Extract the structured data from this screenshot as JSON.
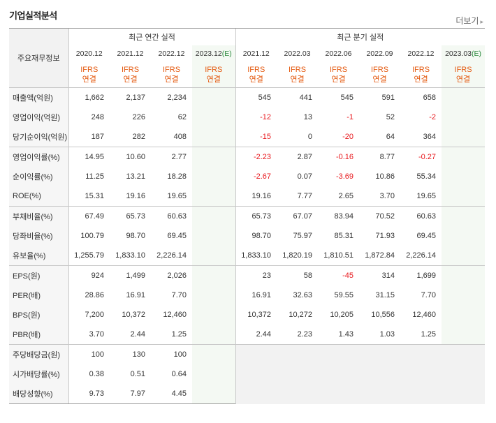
{
  "title": "기업실적분석",
  "more_label": "더보기",
  "header": {
    "category_label": "주요재무정보",
    "annual_label": "최근 연간 실적",
    "quarterly_label": "최근 분기 실적",
    "annual_periods": [
      "2020.12",
      "2021.12",
      "2022.12",
      "2023.12"
    ],
    "quarterly_periods": [
      "2021.12",
      "2022.03",
      "2022.06",
      "2022.09",
      "2022.12",
      "2023.03"
    ],
    "estimate_suffix": "(E)",
    "ifrs_line1": "IFRS",
    "ifrs_line2": "연결"
  },
  "rows": [
    {
      "label": "매출액(억원)",
      "annual": [
        "1,662",
        "2,137",
        "2,234",
        ""
      ],
      "quarterly": [
        "545",
        "441",
        "545",
        "591",
        "658",
        ""
      ]
    },
    {
      "label": "영업이익(억원)",
      "annual": [
        "248",
        "226",
        "62",
        ""
      ],
      "quarterly": [
        "-12",
        "13",
        "-1",
        "52",
        "-2",
        ""
      ]
    },
    {
      "label": "당기순이익(억원)",
      "annual": [
        "187",
        "282",
        "408",
        ""
      ],
      "quarterly": [
        "-15",
        "0",
        "-20",
        "64",
        "364",
        ""
      ]
    },
    {
      "label": "영업이익률(%)",
      "annual": [
        "14.95",
        "10.60",
        "2.77",
        ""
      ],
      "quarterly": [
        "-2.23",
        "2.87",
        "-0.16",
        "8.77",
        "-0.27",
        ""
      ]
    },
    {
      "label": "순이익률(%)",
      "annual": [
        "11.25",
        "13.21",
        "18.28",
        ""
      ],
      "quarterly": [
        "-2.67",
        "0.07",
        "-3.69",
        "10.86",
        "55.34",
        ""
      ]
    },
    {
      "label": "ROE(%)",
      "annual": [
        "15.31",
        "19.16",
        "19.65",
        ""
      ],
      "quarterly": [
        "19.16",
        "7.77",
        "2.65",
        "3.70",
        "19.65",
        ""
      ]
    },
    {
      "label": "부채비율(%)",
      "annual": [
        "67.49",
        "65.73",
        "60.63",
        ""
      ],
      "quarterly": [
        "65.73",
        "67.07",
        "83.94",
        "70.52",
        "60.63",
        ""
      ]
    },
    {
      "label": "당좌비율(%)",
      "annual": [
        "100.79",
        "98.70",
        "69.45",
        ""
      ],
      "quarterly": [
        "98.70",
        "75.97",
        "85.31",
        "71.93",
        "69.45",
        ""
      ]
    },
    {
      "label": "유보율(%)",
      "annual": [
        "1,255.79",
        "1,833.10",
        "2,226.14",
        ""
      ],
      "quarterly": [
        "1,833.10",
        "1,820.19",
        "1,810.51",
        "1,872.84",
        "2,226.14",
        ""
      ]
    },
    {
      "label": "EPS(원)",
      "annual": [
        "924",
        "1,499",
        "2,026",
        ""
      ],
      "quarterly": [
        "23",
        "58",
        "-45",
        "314",
        "1,699",
        ""
      ]
    },
    {
      "label": "PER(배)",
      "annual": [
        "28.86",
        "16.91",
        "7.70",
        ""
      ],
      "quarterly": [
        "16.91",
        "32.63",
        "59.55",
        "31.15",
        "7.70",
        ""
      ]
    },
    {
      "label": "BPS(원)",
      "annual": [
        "7,200",
        "10,372",
        "12,460",
        ""
      ],
      "quarterly": [
        "10,372",
        "10,272",
        "10,205",
        "10,556",
        "12,460",
        ""
      ]
    },
    {
      "label": "PBR(배)",
      "annual": [
        "3.70",
        "2.44",
        "1.25",
        ""
      ],
      "quarterly": [
        "2.44",
        "2.23",
        "1.43",
        "1.03",
        "1.25",
        ""
      ]
    },
    {
      "label": "주당배당금(원)",
      "annual": [
        "100",
        "130",
        "100",
        ""
      ],
      "quarterly": null
    },
    {
      "label": "시가배당률(%)",
      "annual": [
        "0.38",
        "0.51",
        "0.64",
        ""
      ],
      "quarterly": null
    },
    {
      "label": "배당성향(%)",
      "annual": [
        "9.73",
        "7.97",
        "4.45",
        ""
      ],
      "quarterly": null
    }
  ]
}
